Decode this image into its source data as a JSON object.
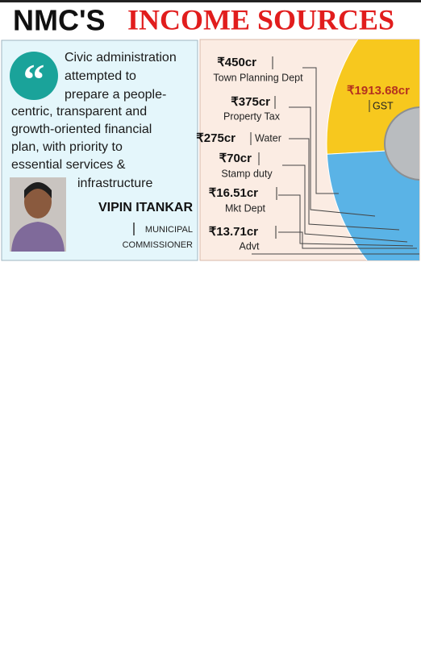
{
  "header": {
    "title_1": "NMC'S",
    "title_2": "INCOME SOURCES"
  },
  "quote": {
    "lines": [
      "Civic administration",
      "attempted to",
      "prepare a people-",
      "centric, transparent and",
      "growth-oriented financial",
      "plan, with priority to",
      "essential services &",
      "infrastructure"
    ],
    "name": "VIPIN ITANKAR",
    "role_1": "MUNICIPAL",
    "role_2": "COMMISSIONER"
  },
  "chart_data": {
    "type": "pie",
    "categories": [
      "GST",
      "Town Planning Dept",
      "Property Tax",
      "Water",
      "Stamp duty",
      "Mkt Dept",
      "Advt"
    ],
    "values": [
      1913.68,
      450,
      375,
      275,
      70,
      16.51,
      13.71
    ],
    "value_labels": [
      "₹1913.68cr",
      "₹450cr",
      "₹375cr",
      "₹275cr",
      "₹70cr",
      "₹16.51cr",
      "₹13.71cr"
    ],
    "colors": [
      "#f7c81e",
      "#5ab3e6",
      "#e12a2a",
      "#a9a9a9",
      "#7d7d7d",
      "#8b3fa9",
      "#3cc6d6"
    ]
  }
}
